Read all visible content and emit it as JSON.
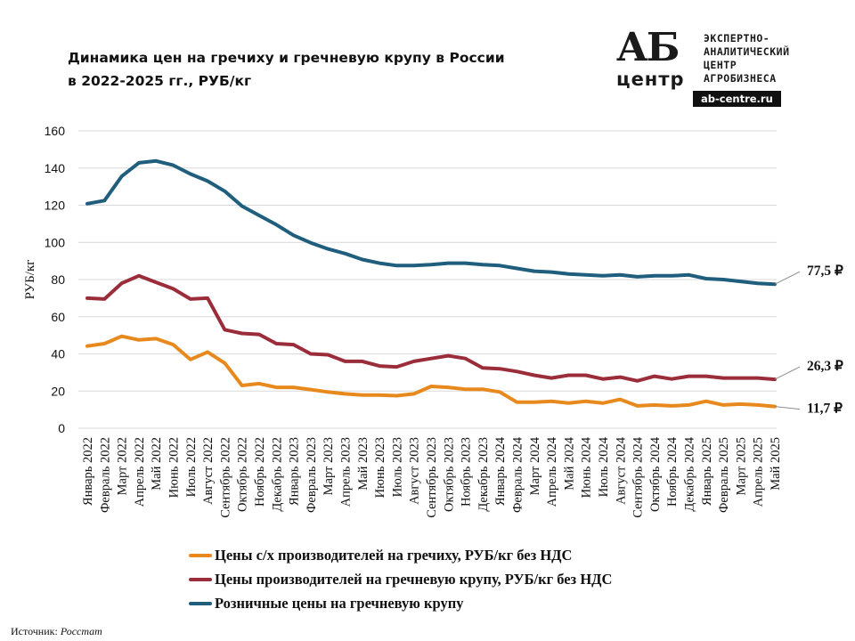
{
  "header": {
    "title_line1": "Динамика цен на гречиху и гречневую крупу в России",
    "title_line2": "в 2022-2025 гг., РУБ/кг"
  },
  "logo": {
    "brand_top": "АБ",
    "brand_bottom": "центр",
    "lines": [
      "ЭКСПЕРТНО-",
      "АНАЛИТИЧЕСКИЙ",
      "ЦЕНТР",
      "АГРОБИЗНЕСА"
    ],
    "site": "ab-centre.ru"
  },
  "source": {
    "label": "Источник:",
    "name": "Росстат"
  },
  "chart_data": {
    "type": "line",
    "title": "Динамика цен на гречиху и гречневую крупу в России в 2022-2025 гг., РУБ/кг",
    "ylabel": "РУБ/кг",
    "xlabel": "",
    "ylim": [
      0,
      160
    ],
    "yticks": [
      0,
      20,
      40,
      60,
      80,
      100,
      120,
      140,
      160
    ],
    "grid": "horizontal",
    "legend": "bottom",
    "categories": [
      "Январь 2022",
      "Февраль 2022",
      "Март 2022",
      "Апрель 2022",
      "Май 2022",
      "Июнь 2022",
      "Июль 2022",
      "Август 2022",
      "Сентябрь 2022",
      "Октябрь 2022",
      "Ноябрь 2022",
      "Декабрь 2022",
      "Январь 2023",
      "Февраль 2023",
      "Март 2023",
      "Апрель 2023",
      "Май 2023",
      "Июнь 2023",
      "Июль 2023",
      "Август 2023",
      "Сентябрь 2023",
      "Октябрь 2023",
      "Ноябрь 2023",
      "Декабрь 2023",
      "Январь 2024",
      "Февраль 2024",
      "Март 2024",
      "Апрель 2024",
      "Май 2024",
      "Июнь 2024",
      "Июль 2024",
      "Август 2024",
      "Сентябрь 2024",
      "Октябрь 2024",
      "Ноябрь 2024",
      "Декабрь 2024",
      "Январь 2025",
      "Февраль 2025",
      "Март 2025",
      "Апрель 2025",
      "Май 2025"
    ],
    "series": [
      {
        "name": "Цены с/х производителей на гречиху, РУБ/кг без НДС",
        "color": "#E8891E",
        "end_label": "11,7 ₽",
        "values": [
          44.2,
          45.5,
          49.5,
          47.5,
          48.2,
          45.0,
          37.0,
          41.0,
          35.0,
          23.0,
          24.0,
          22.0,
          22.0,
          20.8,
          19.5,
          18.5,
          17.8,
          17.8,
          17.5,
          18.5,
          22.5,
          22.0,
          21.0,
          21.0,
          19.5,
          14.0,
          14.0,
          14.5,
          13.5,
          14.5,
          13.5,
          15.5,
          12.0,
          12.5,
          12.0,
          12.5,
          14.5,
          12.5,
          13.0,
          12.5,
          11.7
        ]
      },
      {
        "name": "Цены производителей на гречневую крупу, РУБ/кг без НДС",
        "color": "#9B2D3A",
        "end_label": "26,3 ₽",
        "values": [
          70.0,
          69.5,
          78.0,
          82.0,
          78.5,
          75.0,
          69.5,
          70.0,
          53.0,
          51.0,
          50.5,
          45.5,
          45.0,
          40.0,
          39.5,
          36.0,
          36.0,
          33.5,
          33.0,
          36.0,
          37.5,
          39.0,
          37.5,
          32.5,
          32.0,
          30.5,
          28.5,
          27.0,
          28.5,
          28.5,
          26.5,
          27.5,
          25.5,
          28.0,
          26.5,
          28.0,
          28.0,
          27.0,
          27.0,
          27.0,
          26.3
        ]
      },
      {
        "name": "Розничные цены на гречневую крупу",
        "color": "#1F5E7C",
        "end_label": "77,5 ₽",
        "values": [
          120.8,
          122.5,
          135.5,
          142.8,
          143.8,
          141.5,
          136.8,
          133.0,
          127.5,
          119.5,
          114.5,
          109.5,
          103.8,
          99.8,
          96.5,
          94.0,
          90.8,
          88.8,
          87.5,
          87.5,
          88.0,
          88.8,
          88.8,
          88.0,
          87.5,
          86.0,
          84.5,
          84.0,
          83.0,
          82.5,
          82.0,
          82.5,
          81.5,
          82.0,
          82.0,
          82.5,
          80.5,
          80.0,
          79.0,
          78.0,
          77.5
        ]
      }
    ]
  }
}
